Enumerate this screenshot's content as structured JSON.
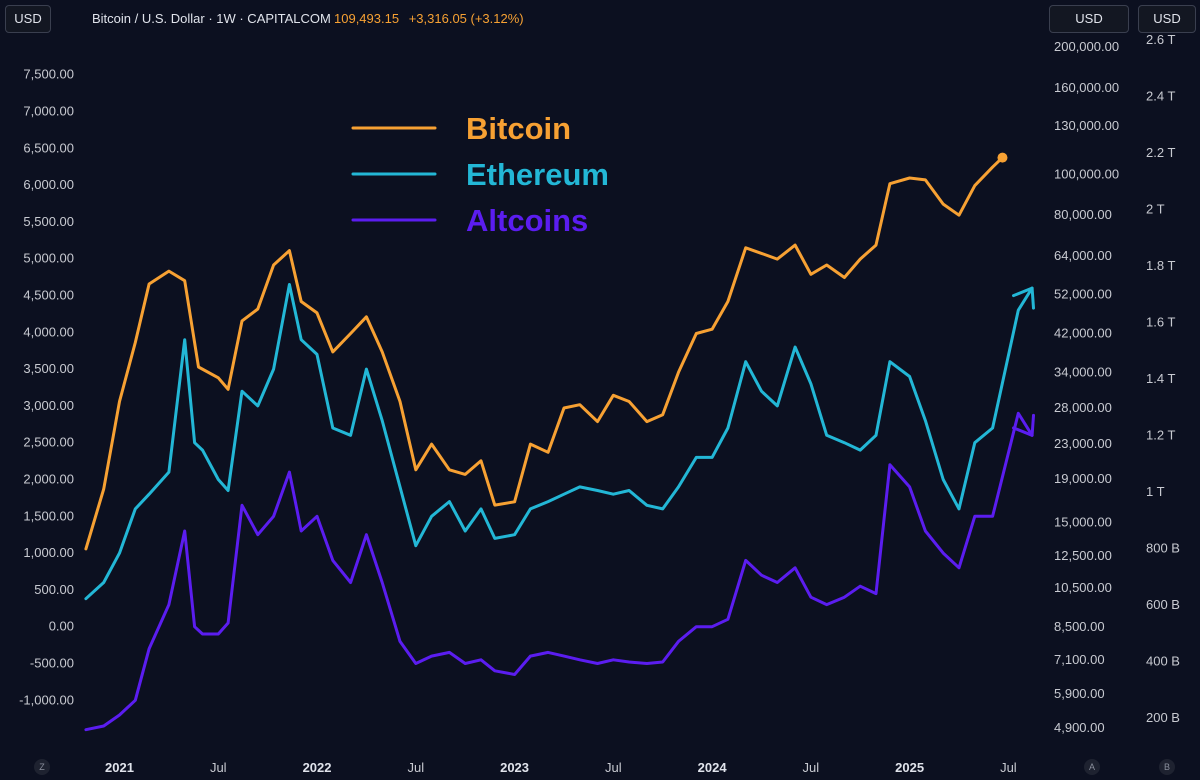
{
  "header": {
    "title": "Bitcoin / U.S. Dollar · 1W · CAPITALCOM",
    "price": "109,493.15",
    "change": "+3,316.05 (+3.12%)"
  },
  "currency_buttons": {
    "left": "USD",
    "right_main": "USD",
    "right_secondary": "USD"
  },
  "corner_labels": {
    "bottom_left": "Z",
    "axis_a": "A",
    "axis_b": "B"
  },
  "colors": {
    "background": "#0c1020",
    "bitcoin": "#f7a133",
    "ethereum": "#23b7d6",
    "altcoins": "#5b1df0"
  },
  "chart_data": {
    "type": "line",
    "title": "Bitcoin / U.S. Dollar · 1W · CAPITALCOM",
    "legend": [
      "Bitcoin",
      "Ethereum",
      "Altcoins"
    ],
    "legend_position": "top-center",
    "x_ticks": [
      "2021",
      "Jul",
      "2022",
      "Jul",
      "2023",
      "Jul",
      "2024",
      "Jul",
      "2025",
      "Jul"
    ],
    "x_range": [
      "2020-10",
      "2025-08"
    ],
    "left_axis": {
      "ticks": [
        "7,500.00",
        "7,000.00",
        "6,500.00",
        "6,000.00",
        "5,500.00",
        "5,000.00",
        "4,500.00",
        "4,000.00",
        "3,500.00",
        "3,000.00",
        "2,500.00",
        "2,000.00",
        "1,500.00",
        "1,000.00",
        "500.00",
        "0.00",
        "-500.00",
        "-1,000.00"
      ],
      "range": [
        -1200,
        7700
      ]
    },
    "right_axis_bitcoin": {
      "scale": "log",
      "ticks": [
        "200,000.00",
        "160,000.00",
        "130,000.00",
        "100,000.00",
        "80,000.00",
        "64,000.00",
        "52,000.00",
        "42,000.00",
        "34,000.00",
        "28,000.00",
        "23,000.00",
        "19,000.00",
        "15,000.00",
        "12,500.00",
        "10,500.00",
        "8,500.00",
        "7,100.00",
        "5,900.00",
        "4,900.00"
      ]
    },
    "right_axis_total_market_cap": {
      "ticks": [
        "2.6 T",
        "2.4 T",
        "2.2 T",
        "2 T",
        "1.8 T",
        "1.6 T",
        "1.4 T",
        "1.2 T",
        "1 T",
        "800 B",
        "600 B",
        "400 B",
        "200 B"
      ]
    },
    "series": [
      {
        "name": "Bitcoin",
        "color": "#f7a133",
        "values": [
          [
            2020.83,
            13000
          ],
          [
            2020.92,
            18000
          ],
          [
            2021.0,
            29000
          ],
          [
            2021.08,
            40000
          ],
          [
            2021.15,
            55000
          ],
          [
            2021.25,
            59000
          ],
          [
            2021.33,
            56000
          ],
          [
            2021.4,
            35000
          ],
          [
            2021.5,
            33000
          ],
          [
            2021.55,
            31000
          ],
          [
            2021.62,
            45000
          ],
          [
            2021.7,
            48000
          ],
          [
            2021.78,
            61000
          ],
          [
            2021.86,
            66000
          ],
          [
            2021.92,
            50000
          ],
          [
            2022.0,
            47000
          ],
          [
            2022.08,
            38000
          ],
          [
            2022.17,
            42000
          ],
          [
            2022.25,
            46000
          ],
          [
            2022.33,
            38000
          ],
          [
            2022.42,
            29000
          ],
          [
            2022.5,
            20000
          ],
          [
            2022.58,
            23000
          ],
          [
            2022.67,
            20000
          ],
          [
            2022.75,
            19500
          ],
          [
            2022.83,
            21000
          ],
          [
            2022.9,
            16500
          ],
          [
            2023.0,
            16800
          ],
          [
            2023.08,
            23000
          ],
          [
            2023.17,
            22000
          ],
          [
            2023.25,
            28000
          ],
          [
            2023.33,
            28500
          ],
          [
            2023.42,
            26000
          ],
          [
            2023.5,
            30000
          ],
          [
            2023.58,
            29000
          ],
          [
            2023.67,
            26000
          ],
          [
            2023.75,
            27000
          ],
          [
            2023.83,
            34000
          ],
          [
            2023.92,
            42000
          ],
          [
            2024.0,
            43000
          ],
          [
            2024.08,
            50000
          ],
          [
            2024.17,
            67000
          ],
          [
            2024.25,
            65000
          ],
          [
            2024.33,
            63000
          ],
          [
            2024.42,
            68000
          ],
          [
            2024.5,
            58000
          ],
          [
            2024.58,
            61000
          ],
          [
            2024.67,
            57000
          ],
          [
            2024.75,
            63000
          ],
          [
            2024.83,
            68000
          ],
          [
            2024.9,
            95000
          ],
          [
            2025.0,
            98000
          ],
          [
            2025.08,
            97000
          ],
          [
            2025.17,
            85000
          ],
          [
            2025.25,
            80000
          ],
          [
            2025.33,
            94000
          ],
          [
            2025.42,
            104000
          ],
          [
            2025.47,
            109493.15
          ]
        ]
      },
      {
        "name": "Ethereum",
        "color": "#23b7d6",
        "values": [
          [
            2020.83,
            380
          ],
          [
            2020.92,
            600
          ],
          [
            2021.0,
            1000
          ],
          [
            2021.08,
            1600
          ],
          [
            2021.15,
            1800
          ],
          [
            2021.25,
            2100
          ],
          [
            2021.33,
            3900
          ],
          [
            2021.38,
            2500
          ],
          [
            2021.42,
            2400
          ],
          [
            2021.5,
            2000
          ],
          [
            2021.55,
            1850
          ],
          [
            2021.62,
            3200
          ],
          [
            2021.7,
            3000
          ],
          [
            2021.78,
            3500
          ],
          [
            2021.86,
            4650
          ],
          [
            2021.92,
            3900
          ],
          [
            2022.0,
            3700
          ],
          [
            2022.08,
            2700
          ],
          [
            2022.17,
            2600
          ],
          [
            2022.25,
            3500
          ],
          [
            2022.33,
            2800
          ],
          [
            2022.42,
            1900
          ],
          [
            2022.5,
            1100
          ],
          [
            2022.58,
            1500
          ],
          [
            2022.67,
            1700
          ],
          [
            2022.75,
            1300
          ],
          [
            2022.83,
            1600
          ],
          [
            2022.9,
            1200
          ],
          [
            2023.0,
            1250
          ],
          [
            2023.08,
            1600
          ],
          [
            2023.17,
            1700
          ],
          [
            2023.25,
            1800
          ],
          [
            2023.33,
            1900
          ],
          [
            2023.42,
            1850
          ],
          [
            2023.5,
            1800
          ],
          [
            2023.58,
            1850
          ],
          [
            2023.67,
            1650
          ],
          [
            2023.75,
            1600
          ],
          [
            2023.83,
            1900
          ],
          [
            2023.92,
            2300
          ],
          [
            2024.0,
            2300
          ],
          [
            2024.08,
            2700
          ],
          [
            2024.17,
            3600
          ],
          [
            2024.25,
            3200
          ],
          [
            2024.33,
            3000
          ],
          [
            2024.42,
            3800
          ],
          [
            2024.5,
            3300
          ],
          [
            2024.58,
            2600
          ],
          [
            2024.67,
            2500
          ],
          [
            2024.75,
            2400
          ],
          [
            2024.83,
            2600
          ],
          [
            2024.9,
            3600
          ],
          [
            2025.0,
            3400
          ],
          [
            2025.08,
            2800
          ],
          [
            2025.17,
            2000
          ],
          [
            2025.25,
            1600
          ],
          [
            2025.33,
            2500
          ],
          [
            2025.42,
            2700
          ],
          [
            2025.55,
            4300
          ],
          [
            2025.62,
            4600
          ]
        ]
      },
      {
        "name": "Altcoins",
        "color": "#5b1df0",
        "values": [
          [
            2020.83,
            -1400
          ],
          [
            2020.92,
            -1350
          ],
          [
            2021.0,
            -1200
          ],
          [
            2021.08,
            -1000
          ],
          [
            2021.15,
            -300
          ],
          [
            2021.25,
            300
          ],
          [
            2021.33,
            1300
          ],
          [
            2021.38,
            0
          ],
          [
            2021.42,
            -100
          ],
          [
            2021.5,
            -100
          ],
          [
            2021.55,
            50
          ],
          [
            2021.62,
            1650
          ],
          [
            2021.7,
            1250
          ],
          [
            2021.78,
            1500
          ],
          [
            2021.86,
            2100
          ],
          [
            2021.92,
            1300
          ],
          [
            2022.0,
            1500
          ],
          [
            2022.08,
            900
          ],
          [
            2022.17,
            600
          ],
          [
            2022.25,
            1250
          ],
          [
            2022.33,
            600
          ],
          [
            2022.42,
            -200
          ],
          [
            2022.5,
            -500
          ],
          [
            2022.58,
            -400
          ],
          [
            2022.67,
            -350
          ],
          [
            2022.75,
            -500
          ],
          [
            2022.83,
            -450
          ],
          [
            2022.9,
            -600
          ],
          [
            2023.0,
            -650
          ],
          [
            2023.08,
            -400
          ],
          [
            2023.17,
            -350
          ],
          [
            2023.25,
            -400
          ],
          [
            2023.33,
            -450
          ],
          [
            2023.42,
            -500
          ],
          [
            2023.5,
            -450
          ],
          [
            2023.58,
            -480
          ],
          [
            2023.67,
            -500
          ],
          [
            2023.75,
            -480
          ],
          [
            2023.83,
            -200
          ],
          [
            2023.92,
            0
          ],
          [
            2024.0,
            0
          ],
          [
            2024.08,
            100
          ],
          [
            2024.17,
            900
          ],
          [
            2024.25,
            700
          ],
          [
            2024.33,
            600
          ],
          [
            2024.42,
            800
          ],
          [
            2024.5,
            400
          ],
          [
            2024.58,
            300
          ],
          [
            2024.67,
            400
          ],
          [
            2024.75,
            550
          ],
          [
            2024.83,
            450
          ],
          [
            2024.9,
            2200
          ],
          [
            2025.0,
            1900
          ],
          [
            2025.08,
            1300
          ],
          [
            2025.17,
            1000
          ],
          [
            2025.25,
            800
          ],
          [
            2025.33,
            1500
          ],
          [
            2025.42,
            1500
          ],
          [
            2025.55,
            2900
          ],
          [
            2025.62,
            2600
          ]
        ]
      }
    ]
  }
}
